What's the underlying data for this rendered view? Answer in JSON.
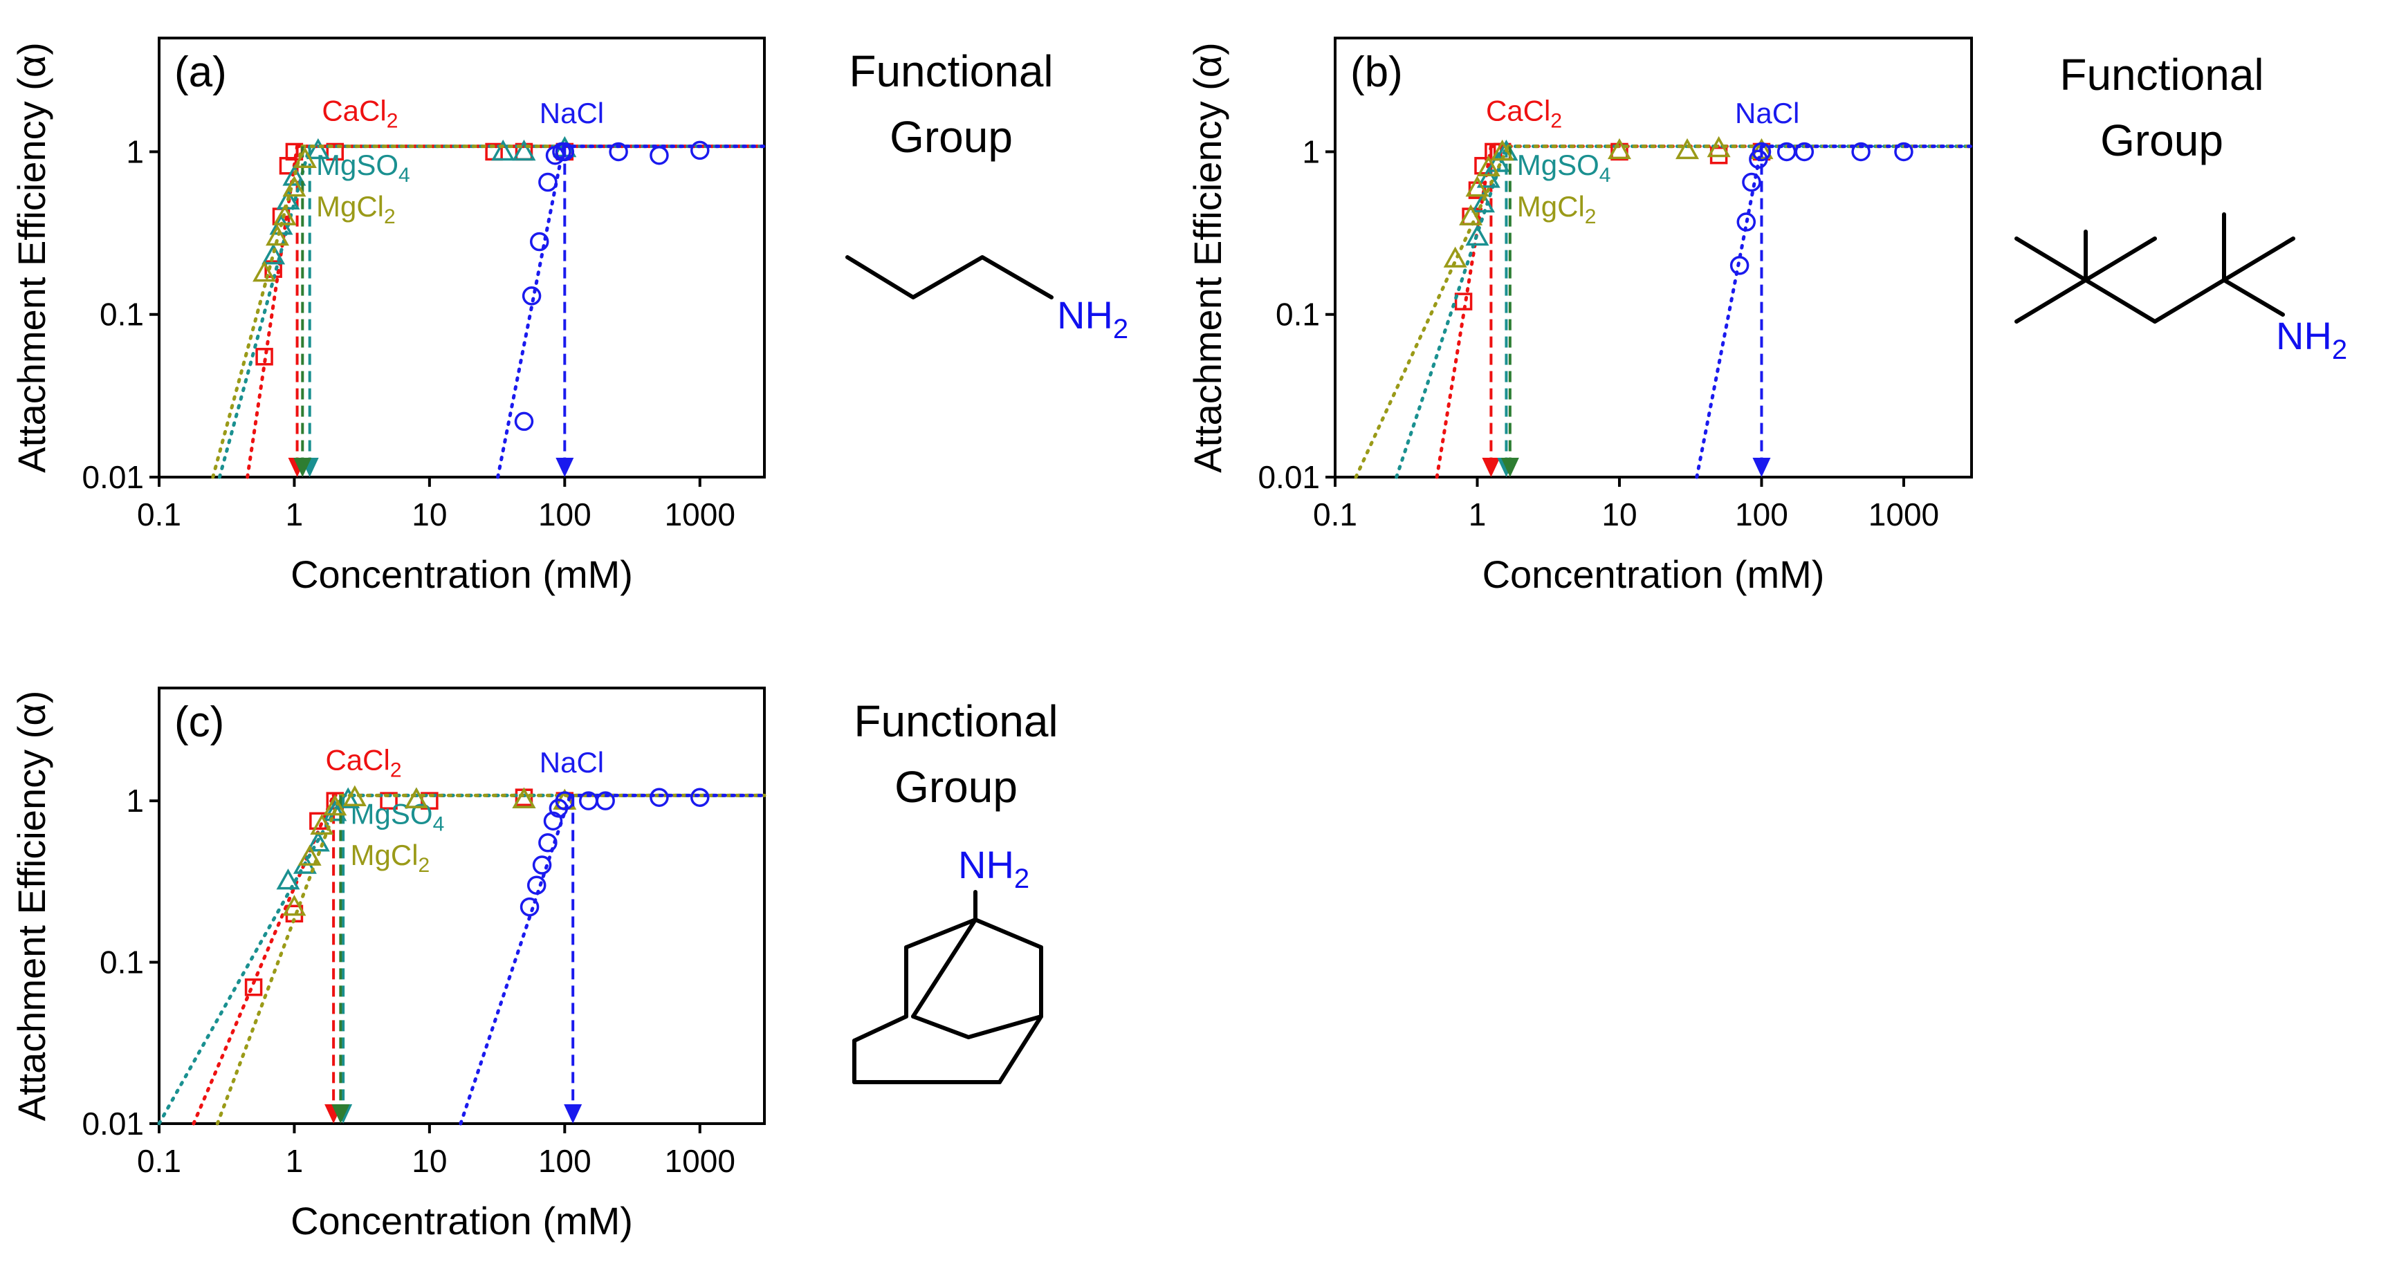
{
  "colors": {
    "CaCl2": "#ee1111",
    "NaCl": "#1a1aee",
    "MgSO4": "#1a9090",
    "MgCl2": "#9a9a18",
    "arrow_mg": "#2e7d32",
    "axis": "#000000"
  },
  "functional_groups": {
    "a": {
      "line1": "Functional",
      "line2": "Group",
      "amine": "NH",
      "amine_sub": "2"
    },
    "b": {
      "line1": "Functional",
      "line2": "Group",
      "amine": "NH",
      "amine_sub": "2"
    },
    "c": {
      "line1": "Functional",
      "line2": "Group",
      "amine": "NH",
      "amine_sub": "2"
    }
  },
  "chart_data": [
    {
      "type": "scatter",
      "panel_label": "(a)",
      "xlabel": "Concentration (mM)",
      "ylabel": "Attachment Efficiency (α)",
      "xscale": "log",
      "yscale": "log",
      "xlim": [
        0.1,
        3000
      ],
      "ylim": [
        0.01,
        5
      ],
      "xticks": [
        0.1,
        1,
        10,
        100,
        1000
      ],
      "xtick_labels": [
        "0.1",
        "1",
        "10",
        "100",
        "1000"
      ],
      "yticks": [
        0.01,
        0.1,
        1
      ],
      "ytick_labels": [
        "0.01",
        "0.1",
        "1"
      ],
      "series": [
        {
          "name": "CaCl2",
          "label_main": "CaCl",
          "label_sub": "2",
          "marker": "square",
          "x": [
            0.6,
            0.7,
            0.8,
            0.9,
            1.0,
            2.0,
            30,
            50,
            100
          ],
          "y": [
            0.055,
            0.19,
            0.4,
            0.82,
            1.0,
            1.0,
            1.0,
            1.0,
            1.0
          ],
          "fit": {
            "x0": 0.45,
            "xc": 1.05,
            "plateau": 1.08
          },
          "ccc": 1.05,
          "label_pos": [
            1.6,
            1.55
          ]
        },
        {
          "name": "MgSO4",
          "label_main": "MgSO",
          "label_sub": "4",
          "marker": "triangle",
          "x": [
            0.7,
            0.8,
            0.9,
            1.0,
            1.5,
            35,
            50,
            100
          ],
          "y": [
            0.23,
            0.35,
            0.5,
            0.7,
            1.02,
            1.0,
            1.0,
            1.05
          ],
          "fit": {
            "x0": 0.28,
            "xc": 1.3,
            "plateau": 1.08
          },
          "ccc": 1.3,
          "label_pos": [
            1.45,
            0.72
          ]
        },
        {
          "name": "MgCl2",
          "label_main": "MgCl",
          "label_sub": "2",
          "marker": "triangle",
          "x": [
            0.6,
            0.75,
            0.85,
            1.0,
            1.2
          ],
          "y": [
            0.18,
            0.3,
            0.4,
            0.6,
            0.9
          ],
          "fit": {
            "x0": 0.25,
            "xc": 1.15,
            "plateau": 1.08
          },
          "ccc": 1.15,
          "label_pos": [
            1.45,
            0.4
          ]
        },
        {
          "name": "NaCl",
          "label_main": "NaCl",
          "label_sub": "",
          "marker": "circle",
          "x": [
            50,
            57,
            65,
            75,
            85,
            95,
            100,
            250,
            500,
            1000
          ],
          "y": [
            0.022,
            0.13,
            0.28,
            0.65,
            0.95,
            1.0,
            1.0,
            1.0,
            0.95,
            1.02
          ],
          "fit": {
            "x0": 32,
            "xc": 98,
            "plateau": 1.08
          },
          "ccc": 100,
          "label_pos": [
            65,
            1.5
          ]
        }
      ]
    },
    {
      "type": "scatter",
      "panel_label": "(b)",
      "xlabel": "Concentration (mM)",
      "ylabel": "Attachment Efficiency (α)",
      "xscale": "log",
      "yscale": "log",
      "xlim": [
        0.1,
        3000
      ],
      "ylim": [
        0.01,
        5
      ],
      "xticks": [
        0.1,
        1,
        10,
        100,
        1000
      ],
      "xtick_labels": [
        "0.1",
        "1",
        "10",
        "100",
        "1000"
      ],
      "yticks": [
        0.01,
        0.1,
        1
      ],
      "ytick_labels": [
        "0.01",
        "0.1",
        "1"
      ],
      "series": [
        {
          "name": "CaCl2",
          "label_main": "CaCl",
          "label_sub": "2",
          "marker": "square",
          "x": [
            0.8,
            0.9,
            1.0,
            1.1,
            1.3,
            1.5,
            10,
            50,
            100
          ],
          "y": [
            0.12,
            0.4,
            0.58,
            0.82,
            1.0,
            1.0,
            1.0,
            0.95,
            1.0
          ],
          "fit": {
            "x0": 0.52,
            "xc": 1.25,
            "plateau": 1.08
          },
          "ccc": 1.25,
          "label_pos": [
            1.15,
            1.55
          ]
        },
        {
          "name": "MgSO4",
          "label_main": "MgSO",
          "label_sub": "4",
          "marker": "triangle",
          "x": [
            1.0,
            1.1,
            1.2,
            1.4,
            1.6
          ],
          "y": [
            0.3,
            0.48,
            0.68,
            0.85,
            1.0
          ],
          "fit": {
            "x0": 0.27,
            "xc": 1.6,
            "plateau": 1.08
          },
          "ccc": 1.6,
          "label_pos": [
            1.9,
            0.72
          ]
        },
        {
          "name": "MgCl2",
          "label_main": "MgCl",
          "label_sub": "2",
          "marker": "triangle",
          "x": [
            0.7,
            0.9,
            1.0,
            1.2,
            1.5,
            10,
            30,
            50,
            100
          ],
          "y": [
            0.22,
            0.4,
            0.6,
            0.8,
            1.0,
            1.02,
            1.02,
            1.05,
            1.02
          ],
          "fit": {
            "x0": 0.14,
            "xc": 1.65,
            "plateau": 1.08
          },
          "ccc": 1.7,
          "label_pos": [
            1.9,
            0.4
          ]
        },
        {
          "name": "NaCl",
          "label_main": "NaCl",
          "label_sub": "",
          "marker": "circle",
          "x": [
            70,
            78,
            85,
            95,
            100,
            150,
            200,
            500,
            1000
          ],
          "y": [
            0.2,
            0.37,
            0.65,
            0.9,
            1.0,
            1.0,
            1.0,
            1.0,
            1.0
          ],
          "fit": {
            "x0": 35,
            "xc": 100,
            "plateau": 1.08
          },
          "ccc": 100,
          "label_pos": [
            65,
            1.5
          ]
        }
      ]
    },
    {
      "type": "scatter",
      "panel_label": "(c)",
      "xlabel": "Concentration (mM)",
      "ylabel": "Attachment Efficiency (α)",
      "xscale": "log",
      "yscale": "log",
      "xlim": [
        0.1,
        3000
      ],
      "ylim": [
        0.01,
        5
      ],
      "xticks": [
        0.1,
        1,
        10,
        100,
        1000
      ],
      "xtick_labels": [
        "0.1",
        "1",
        "10",
        "100",
        "1000"
      ],
      "yticks": [
        0.01,
        0.1,
        1
      ],
      "ytick_labels": [
        "0.01",
        "0.1",
        "1"
      ],
      "series": [
        {
          "name": "CaCl2",
          "label_main": "CaCl",
          "label_sub": "2",
          "marker": "square",
          "x": [
            0.5,
            1.0,
            1.5,
            2.0,
            5,
            10,
            50,
            100
          ],
          "y": [
            0.07,
            0.2,
            0.75,
            1.0,
            1.0,
            1.0,
            1.05,
            1.0
          ],
          "fit": {
            "x0": 0.18,
            "xc": 1.95,
            "plateau": 1.08
          },
          "ccc": 1.95,
          "label_pos": [
            1.7,
            1.55
          ]
        },
        {
          "name": "MgSO4",
          "label_main": "MgSO",
          "label_sub": "4",
          "marker": "triangle",
          "x": [
            0.9,
            1.2,
            1.5,
            2.0,
            2.5,
            8,
            50
          ],
          "y": [
            0.32,
            0.4,
            0.55,
            0.85,
            1.02,
            1.02,
            1.02
          ],
          "fit": {
            "x0": 0.1,
            "xc": 2.3,
            "plateau": 1.08
          },
          "ccc": 2.3,
          "label_pos": [
            2.6,
            0.72
          ]
        },
        {
          "name": "MgCl2",
          "label_main": "MgCl",
          "label_sub": "2",
          "marker": "triangle",
          "x": [
            1.0,
            1.3,
            1.6,
            2.0,
            2.8,
            8,
            50,
            100
          ],
          "y": [
            0.22,
            0.45,
            0.7,
            0.92,
            1.05,
            1.02,
            1.02,
            1.0
          ],
          "fit": {
            "x0": 0.27,
            "xc": 2.2,
            "plateau": 1.08
          },
          "ccc": 2.2,
          "label_pos": [
            2.6,
            0.4
          ]
        },
        {
          "name": "NaCl",
          "label_main": "NaCl",
          "label_sub": "",
          "marker": "circle",
          "x": [
            55,
            62,
            68,
            75,
            82,
            90,
            100,
            150,
            200,
            500,
            1000
          ],
          "y": [
            0.22,
            0.3,
            0.4,
            0.55,
            0.75,
            0.9,
            1.0,
            1.0,
            1.0,
            1.05,
            1.05
          ],
          "fit": {
            "x0": 17,
            "xc": 110,
            "plateau": 1.08
          },
          "ccc": 115,
          "label_pos": [
            65,
            1.5
          ]
        }
      ]
    }
  ]
}
